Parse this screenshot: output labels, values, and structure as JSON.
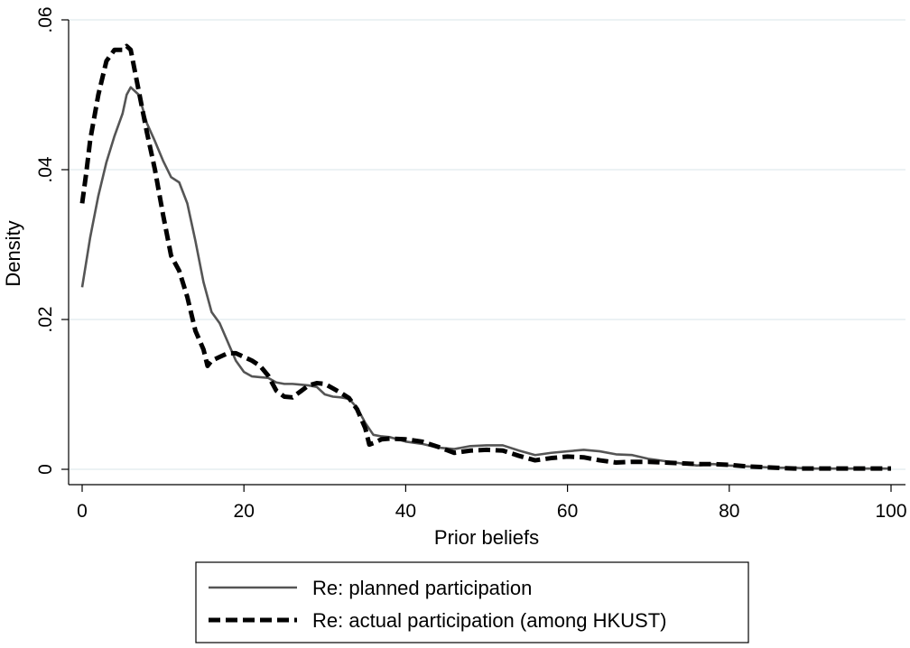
{
  "chart_data": {
    "type": "line",
    "title": "",
    "xlabel": "Prior beliefs",
    "ylabel": "Density",
    "xlim": [
      0,
      100
    ],
    "ylim": [
      0,
      0.06
    ],
    "x_ticks": [
      {
        "value": 0,
        "label": "0"
      },
      {
        "value": 20,
        "label": "20"
      },
      {
        "value": 40,
        "label": "40"
      },
      {
        "value": 60,
        "label": "60"
      },
      {
        "value": 80,
        "label": "80"
      },
      {
        "value": 100,
        "label": "100"
      }
    ],
    "y_ticks": [
      {
        "value": 0,
        "label": "0"
      },
      {
        "value": 0.02,
        "label": ".02"
      },
      {
        "value": 0.04,
        "label": ".04"
      },
      {
        "value": 0.06,
        "label": ".06"
      }
    ],
    "grid": "horizontal",
    "legend_position": "bottom",
    "series": [
      {
        "name": "Re: planned participation",
        "color": "#555555",
        "style": "solid",
        "points": [
          [
            0,
            0.0243
          ],
          [
            1,
            0.031
          ],
          [
            2,
            0.0365
          ],
          [
            3,
            0.041
          ],
          [
            4,
            0.0445
          ],
          [
            5,
            0.0475
          ],
          [
            5.5,
            0.05
          ],
          [
            6,
            0.051
          ],
          [
            7,
            0.05
          ],
          [
            8,
            0.0462
          ],
          [
            9,
            0.0438
          ],
          [
            10,
            0.0412
          ],
          [
            11,
            0.039
          ],
          [
            12,
            0.0383
          ],
          [
            13,
            0.0355
          ],
          [
            14,
            0.0305
          ],
          [
            15,
            0.025
          ],
          [
            16,
            0.021
          ],
          [
            17,
            0.0195
          ],
          [
            18,
            0.017
          ],
          [
            19,
            0.0145
          ],
          [
            20,
            0.013
          ],
          [
            21,
            0.0124
          ],
          [
            22,
            0.0123
          ],
          [
            23,
            0.0122
          ],
          [
            24,
            0.0116
          ],
          [
            25,
            0.0114
          ],
          [
            26,
            0.0114
          ],
          [
            27,
            0.0113
          ],
          [
            28,
            0.0112
          ],
          [
            29,
            0.011
          ],
          [
            30,
            0.01
          ],
          [
            31,
            0.0097
          ],
          [
            32,
            0.0096
          ],
          [
            33,
            0.0094
          ],
          [
            34,
            0.0082
          ],
          [
            35,
            0.0062
          ],
          [
            36,
            0.0046
          ],
          [
            37,
            0.0044
          ],
          [
            38,
            0.0043
          ],
          [
            39,
            0.004
          ],
          [
            40,
            0.0037
          ],
          [
            42,
            0.0034
          ],
          [
            44,
            0.0029
          ],
          [
            46,
            0.0027
          ],
          [
            48,
            0.0031
          ],
          [
            50,
            0.0032
          ],
          [
            52,
            0.0032
          ],
          [
            54,
            0.0025
          ],
          [
            56,
            0.0019
          ],
          [
            58,
            0.0022
          ],
          [
            60,
            0.0024
          ],
          [
            62,
            0.0026
          ],
          [
            64,
            0.0024
          ],
          [
            66,
            0.002
          ],
          [
            68,
            0.0019
          ],
          [
            70,
            0.0014
          ],
          [
            72,
            0.0011
          ],
          [
            74,
            0.0008
          ],
          [
            76,
            0.0005
          ],
          [
            78,
            0.0007
          ],
          [
            80,
            0.0005
          ],
          [
            82,
            0.0004
          ],
          [
            84,
            0.0003
          ],
          [
            86,
            0.0002
          ],
          [
            88,
            0.0002
          ],
          [
            90,
            0.0001
          ],
          [
            92,
            0.0001
          ],
          [
            94,
            0.0001
          ],
          [
            96,
            0.0001
          ],
          [
            98,
            0.0001
          ],
          [
            100,
            0.0001
          ]
        ]
      },
      {
        "name": "Re: actual participation (among HKUST)",
        "color": "#000000",
        "style": "dashed",
        "points": [
          [
            0,
            0.0355
          ],
          [
            0.5,
            0.0395
          ],
          [
            1,
            0.044
          ],
          [
            2,
            0.05
          ],
          [
            3,
            0.0545
          ],
          [
            4,
            0.056
          ],
          [
            5,
            0.056
          ],
          [
            5.5,
            0.0565
          ],
          [
            6,
            0.056
          ],
          [
            7,
            0.0505
          ],
          [
            8,
            0.045
          ],
          [
            9,
            0.04
          ],
          [
            10,
            0.034
          ],
          [
            11,
            0.0285
          ],
          [
            12,
            0.0265
          ],
          [
            13,
            0.023
          ],
          [
            14,
            0.0185
          ],
          [
            15,
            0.016
          ],
          [
            15.5,
            0.0138
          ],
          [
            16,
            0.0145
          ],
          [
            17,
            0.015
          ],
          [
            18,
            0.0155
          ],
          [
            19,
            0.0155
          ],
          [
            20,
            0.015
          ],
          [
            21,
            0.0145
          ],
          [
            22,
            0.0138
          ],
          [
            23,
            0.0125
          ],
          [
            24,
            0.0105
          ],
          [
            25,
            0.0097
          ],
          [
            26,
            0.0096
          ],
          [
            27,
            0.0104
          ],
          [
            28,
            0.0112
          ],
          [
            29,
            0.0115
          ],
          [
            30,
            0.0114
          ],
          [
            31,
            0.0108
          ],
          [
            32,
            0.0102
          ],
          [
            33,
            0.0095
          ],
          [
            34,
            0.008
          ],
          [
            35,
            0.0055
          ],
          [
            35.5,
            0.0033
          ],
          [
            36,
            0.0035
          ],
          [
            37,
            0.004
          ],
          [
            38,
            0.0041
          ],
          [
            40,
            0.004
          ],
          [
            42,
            0.0037
          ],
          [
            44,
            0.003
          ],
          [
            46,
            0.0022
          ],
          [
            48,
            0.0025
          ],
          [
            50,
            0.0026
          ],
          [
            52,
            0.0025
          ],
          [
            54,
            0.0018
          ],
          [
            56,
            0.0012
          ],
          [
            58,
            0.0015
          ],
          [
            60,
            0.0017
          ],
          [
            62,
            0.0016
          ],
          [
            64,
            0.0012
          ],
          [
            66,
            0.0009
          ],
          [
            68,
            0.001
          ],
          [
            70,
            0.001
          ],
          [
            72,
            0.0009
          ],
          [
            74,
            0.0008
          ],
          [
            76,
            0.0007
          ],
          [
            78,
            0.0007
          ],
          [
            80,
            0.0006
          ],
          [
            82,
            0.0004
          ],
          [
            84,
            0.0003
          ],
          [
            86,
            0.0002
          ],
          [
            88,
            0.0001
          ],
          [
            90,
            0.0001
          ],
          [
            92,
            0.0001
          ],
          [
            94,
            0.0001
          ],
          [
            96,
            0.0001
          ],
          [
            98,
            0.0001
          ],
          [
            100,
            0.0001
          ]
        ]
      }
    ]
  }
}
